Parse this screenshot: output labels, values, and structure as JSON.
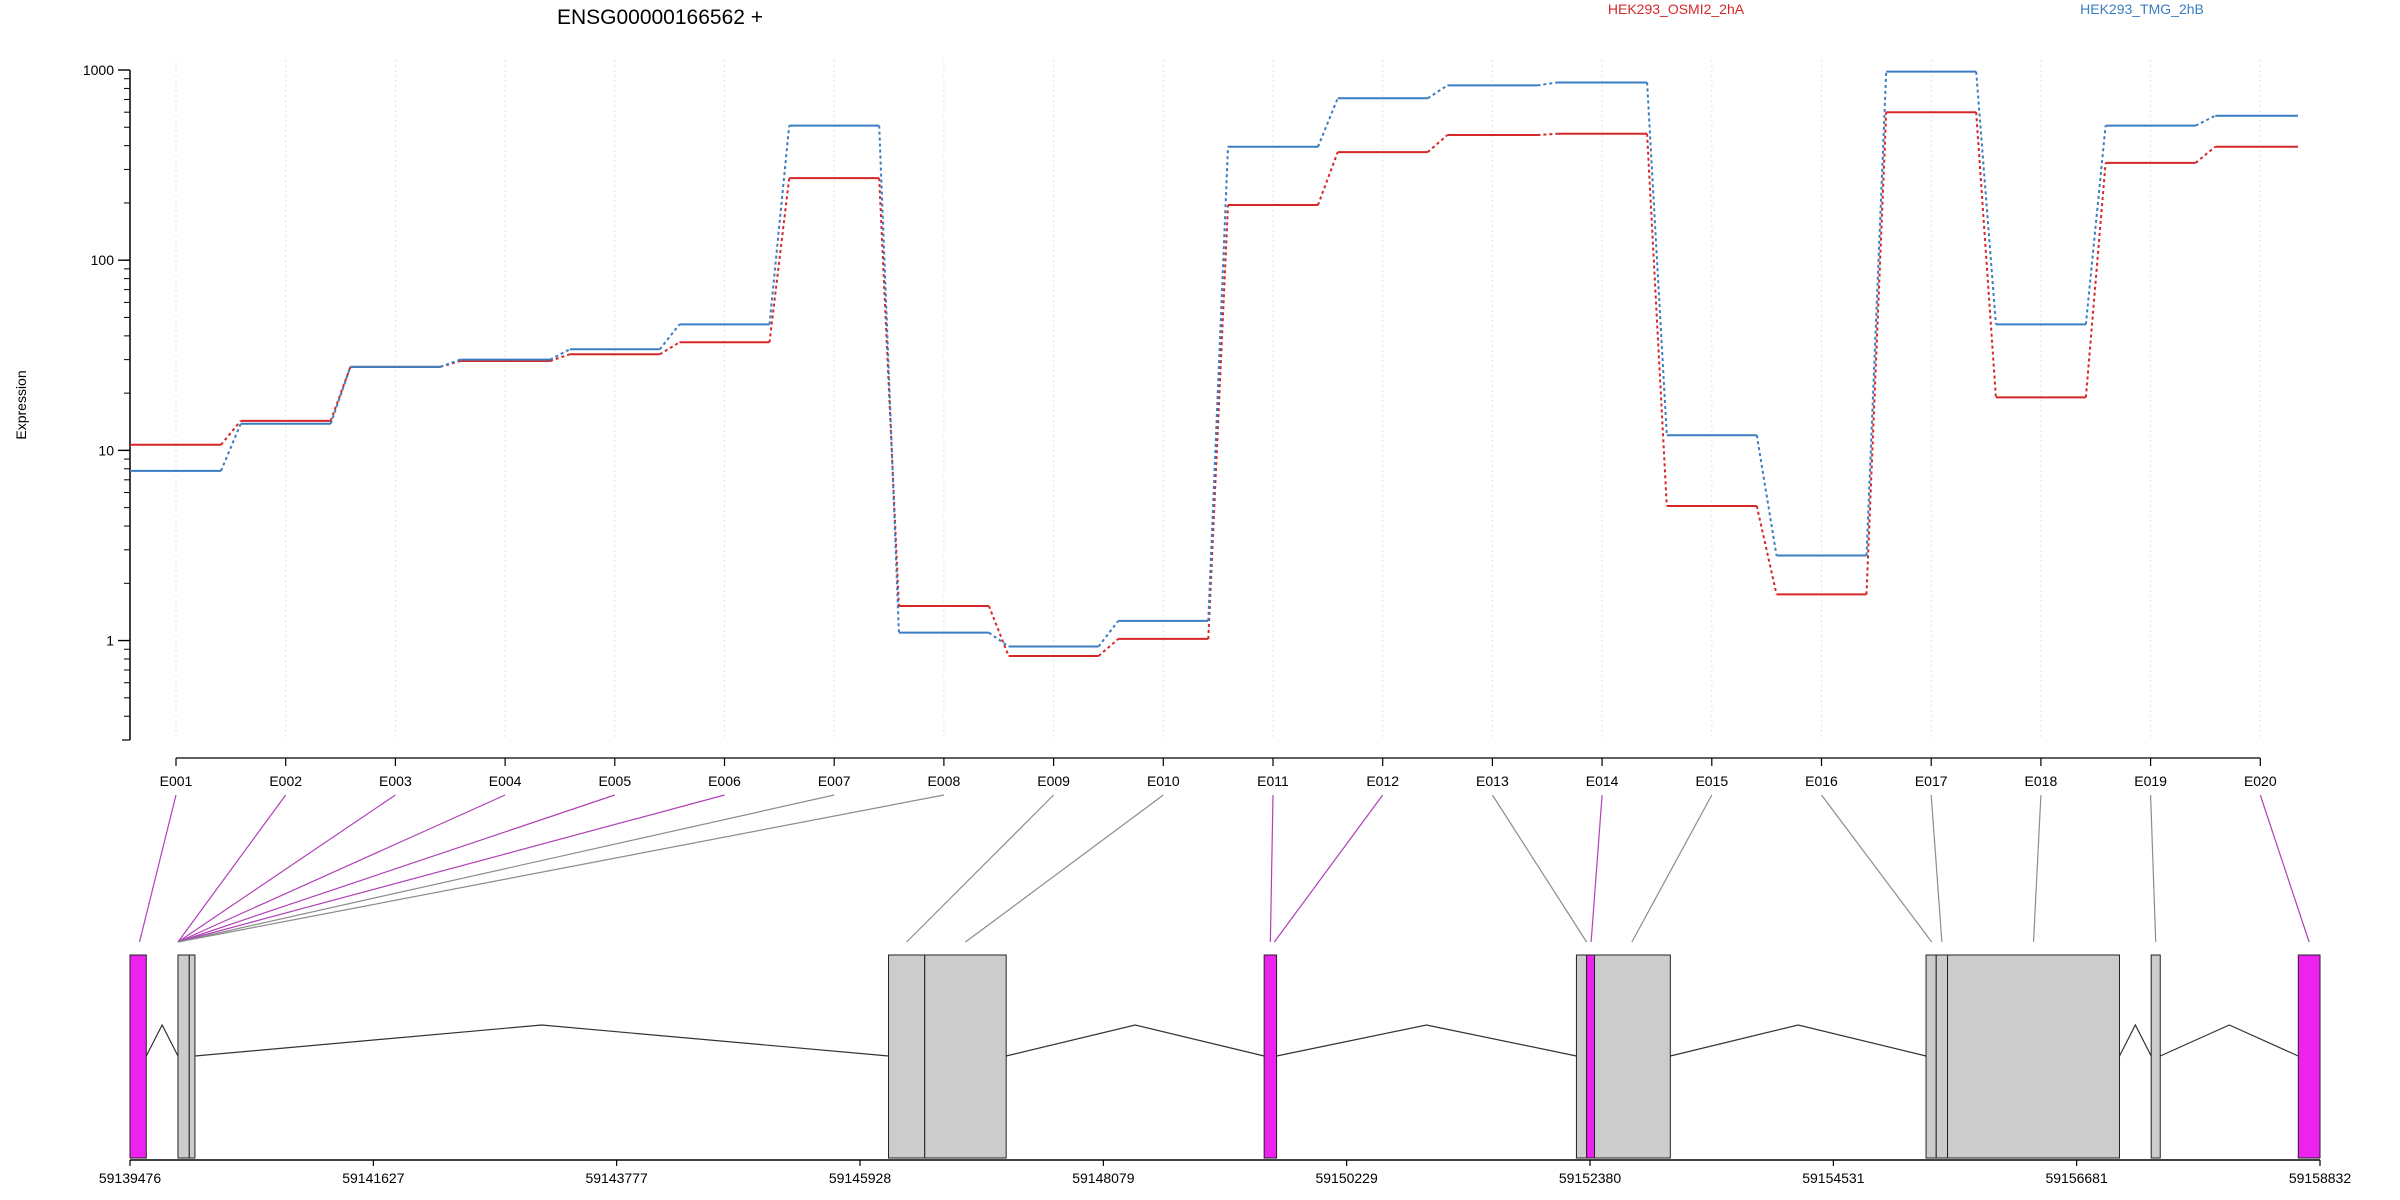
{
  "chart_data": [
    {
      "type": "line",
      "title": "ENSG00000166562 +",
      "ylabel": "Expression",
      "yscale": "log",
      "ylim": [
        0.3,
        1000
      ],
      "yticks": [
        "1",
        "10",
        "100",
        "1000"
      ],
      "grid": "vertical dotted lines at each exon",
      "legend": "top (series names as colored text)",
      "categories": [
        "E001",
        "E002",
        "E003",
        "E004",
        "E005",
        "E006",
        "E007",
        "E008",
        "E009",
        "E010",
        "E011",
        "E012",
        "E013",
        "E014",
        "E015",
        "E016",
        "E017",
        "E018",
        "E019",
        "E020"
      ],
      "series": [
        {
          "name": "HEK293_OSMI2_2hA",
          "color": "#d62728",
          "values": [
            10.7,
            14.3,
            27.5,
            29.5,
            32.0,
            37.0,
            270,
            1.52,
            0.83,
            1.02,
            195,
            370,
            455,
            462,
            5.1,
            1.75,
            600,
            19.0,
            325,
            395
          ]
        },
        {
          "name": "HEK293_TMG_2hB",
          "color": "#3a7dc0",
          "values": [
            7.8,
            13.8,
            27.5,
            30.0,
            34.0,
            46.0,
            510,
            1.1,
            0.93,
            1.27,
            395,
            710,
            830,
            860,
            12.0,
            2.8,
            980,
            46.0,
            510,
            575
          ]
        }
      ]
    },
    {
      "type": "gene_model",
      "x_ticks": [
        "59139476",
        "59141627",
        "59143777",
        "59145928",
        "59148079",
        "59150229",
        "59152380",
        "59154531",
        "59156681",
        "59158832"
      ],
      "xlim": [
        59139476,
        59158832
      ],
      "highlight_color": "#ee22ee",
      "exon_color": "#cccccc",
      "blocks": [
        {
          "start": 59139476,
          "end": 59139620,
          "highlight": true
        },
        {
          "start": 59139900,
          "end": 59140000,
          "highlight": false
        },
        {
          "start": 59140000,
          "end": 59140050,
          "highlight": false
        },
        {
          "start": 59146180,
          "end": 59146500,
          "highlight": false
        },
        {
          "start": 59146500,
          "end": 59147220,
          "highlight": false
        },
        {
          "start": 59149500,
          "end": 59149610,
          "highlight": true
        },
        {
          "start": 59152260,
          "end": 59152350,
          "highlight": false
        },
        {
          "start": 59152350,
          "end": 59152420,
          "highlight": true
        },
        {
          "start": 59152420,
          "end": 59153090,
          "highlight": false
        },
        {
          "start": 59155350,
          "end": 59155440,
          "highlight": false
        },
        {
          "start": 59155440,
          "end": 59155540,
          "highlight": false
        },
        {
          "start": 59155540,
          "end": 59157060,
          "highlight": false
        },
        {
          "start": 59157340,
          "end": 59157420,
          "highlight": false
        },
        {
          "start": 59158640,
          "end": 59158832,
          "highlight": true
        }
      ],
      "introns": [
        [
          59139620,
          59139900
        ],
        [
          59140050,
          59146180
        ],
        [
          59147220,
          59149500
        ],
        [
          59149610,
          59152260
        ],
        [
          59153090,
          59155350
        ],
        [
          59157060,
          59157340
        ],
        [
          59157420,
          59158640
        ]
      ],
      "exon_links": [
        {
          "exon": "E001",
          "pos": 59139560,
          "highlight": true
        },
        {
          "exon": "E002",
          "pos": 59139900,
          "highlight": true
        },
        {
          "exon": "E003",
          "pos": 59139900,
          "highlight": true
        },
        {
          "exon": "E004",
          "pos": 59139900,
          "highlight": true
        },
        {
          "exon": "E005",
          "pos": 59139900,
          "highlight": true
        },
        {
          "exon": "E006",
          "pos": 59139900,
          "highlight": true
        },
        {
          "exon": "E007",
          "pos": 59139900,
          "highlight": false
        },
        {
          "exon": "E008",
          "pos": 59139900,
          "highlight": false
        },
        {
          "exon": "E009",
          "pos": 59146340,
          "highlight": false
        },
        {
          "exon": "E010",
          "pos": 59146860,
          "highlight": false
        },
        {
          "exon": "E011",
          "pos": 59149555,
          "highlight": true
        },
        {
          "exon": "E012",
          "pos": 59149590,
          "highlight": true
        },
        {
          "exon": "E013",
          "pos": 59152350,
          "highlight": false
        },
        {
          "exon": "E014",
          "pos": 59152390,
          "highlight": true
        },
        {
          "exon": "E015",
          "pos": 59152750,
          "highlight": false
        },
        {
          "exon": "E016",
          "pos": 59155400,
          "highlight": false
        },
        {
          "exon": "E017",
          "pos": 59155490,
          "highlight": false
        },
        {
          "exon": "E018",
          "pos": 59156300,
          "highlight": false
        },
        {
          "exon": "E019",
          "pos": 59157380,
          "highlight": false
        },
        {
          "exon": "E020",
          "pos": 59158736,
          "highlight": true
        }
      ]
    }
  ]
}
